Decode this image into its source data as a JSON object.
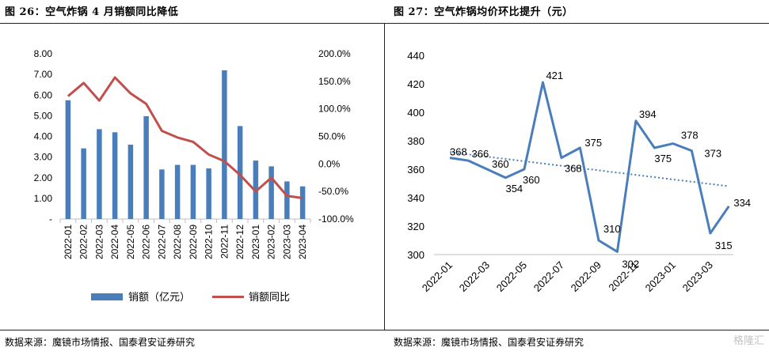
{
  "left": {
    "title": "图 26：空气炸锅 4 月销额同比降低",
    "source": "数据来源：魔镜市场情报、国泰君安证券研究"
  },
  "right": {
    "title": "图 27：空气炸锅均价环比提升（元）",
    "source": "数据来源：魔镜市场情报、国泰君安证券研究"
  },
  "watermark": "格隆汇",
  "colors": {
    "bar": "#4a7ebb",
    "line": "#c0504d",
    "price": "#4a7ebb",
    "trend": "#4a7ebb"
  },
  "chart_data": [
    {
      "type": "bar",
      "title": "",
      "categories": [
        "2022-01",
        "2022-02",
        "2022-03",
        "2022-04",
        "2022-05",
        "2022-06",
        "2022-07",
        "2022-08",
        "2022-09",
        "2022-10",
        "2022-11",
        "2022-12",
        "2023-01",
        "2023-02",
        "2023-03",
        "2023-04"
      ],
      "series": [
        {
          "name": "销额（亿元）",
          "type": "bar",
          "axis": "left",
          "values": [
            5.75,
            3.42,
            4.35,
            4.2,
            3.6,
            4.98,
            2.4,
            2.62,
            2.62,
            2.45,
            7.2,
            4.5,
            2.83,
            2.55,
            1.82,
            1.58
          ]
        },
        {
          "name": "销额同比",
          "type": "line",
          "axis": "right",
          "values": [
            123,
            147,
            115,
            157,
            128,
            109,
            60,
            48,
            40,
            17,
            5,
            -20,
            -50,
            -25,
            -58,
            -62
          ]
        }
      ],
      "y_left": {
        "ticks": [
          "-",
          "1.00",
          "2.00",
          "3.00",
          "4.00",
          "5.00",
          "6.00",
          "7.00",
          "8.00"
        ],
        "ylim": [
          0,
          8
        ]
      },
      "y_right": {
        "ticks": [
          "-100.0%",
          "-50.0%",
          "0.0%",
          "50.0%",
          "100.0%",
          "150.0%",
          "200.0%"
        ],
        "ylim": [
          -100,
          200
        ]
      },
      "legend_position": "bottom"
    },
    {
      "type": "line",
      "title": "",
      "x": [
        "2022-01",
        "2022-02",
        "2022-03",
        "2022-04",
        "2022-05",
        "2022-06",
        "2022-07",
        "2022-08",
        "2022-09",
        "2022-10",
        "2022-11",
        "2022-12",
        "2023-01",
        "2023-02",
        "2023-03",
        "2023-04"
      ],
      "x_tick_labels": [
        "2022-01",
        "2022-03",
        "2022-05",
        "2022-07",
        "2022-09",
        "2022-11",
        "2023-01",
        "2023-03"
      ],
      "series": [
        {
          "values": [
            368,
            366,
            360,
            354,
            360,
            421,
            368,
            375,
            310,
            302,
            394,
            375,
            378,
            373,
            315,
            334
          ],
          "labels": [
            "368",
            "366",
            "360",
            "354",
            "360",
            "421",
            "368",
            "375",
            "310",
            "302",
            "394",
            "375",
            "378",
            "373",
            "315",
            "334"
          ]
        }
      ],
      "trendline": {
        "style": "dotted",
        "start": 372,
        "end": 348
      },
      "yticks": [
        "300",
        "320",
        "340",
        "360",
        "380",
        "400",
        "420",
        "440"
      ],
      "ylim": [
        300,
        440
      ]
    }
  ]
}
